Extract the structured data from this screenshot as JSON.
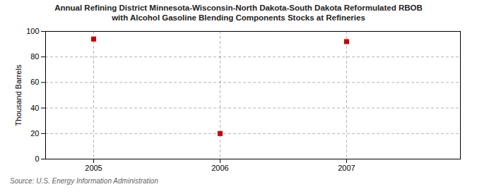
{
  "chart_data": {
    "type": "scatter",
    "title": "Annual Refining District Minnesota-Wisconsin-North Dakota-South Dakota Reformulated RBOB",
    "subtitle": "with Alcohol Gasoline Blending Components Stocks at Refineries",
    "ylabel": "Thousand Barrels",
    "annotations": [
      "Source: U.S. Energy Information Administration"
    ],
    "x": [
      2005,
      2006,
      2007
    ],
    "values": [
      94,
      20,
      92
    ],
    "xlim": [
      2004.62,
      2007.9
    ],
    "ylim": [
      0,
      100
    ],
    "xticks": [
      2005,
      2006,
      2007
    ],
    "yticks": [
      0,
      20,
      40,
      60,
      80,
      100
    ],
    "color": "#cc0000",
    "marker": "square",
    "grid": true
  }
}
